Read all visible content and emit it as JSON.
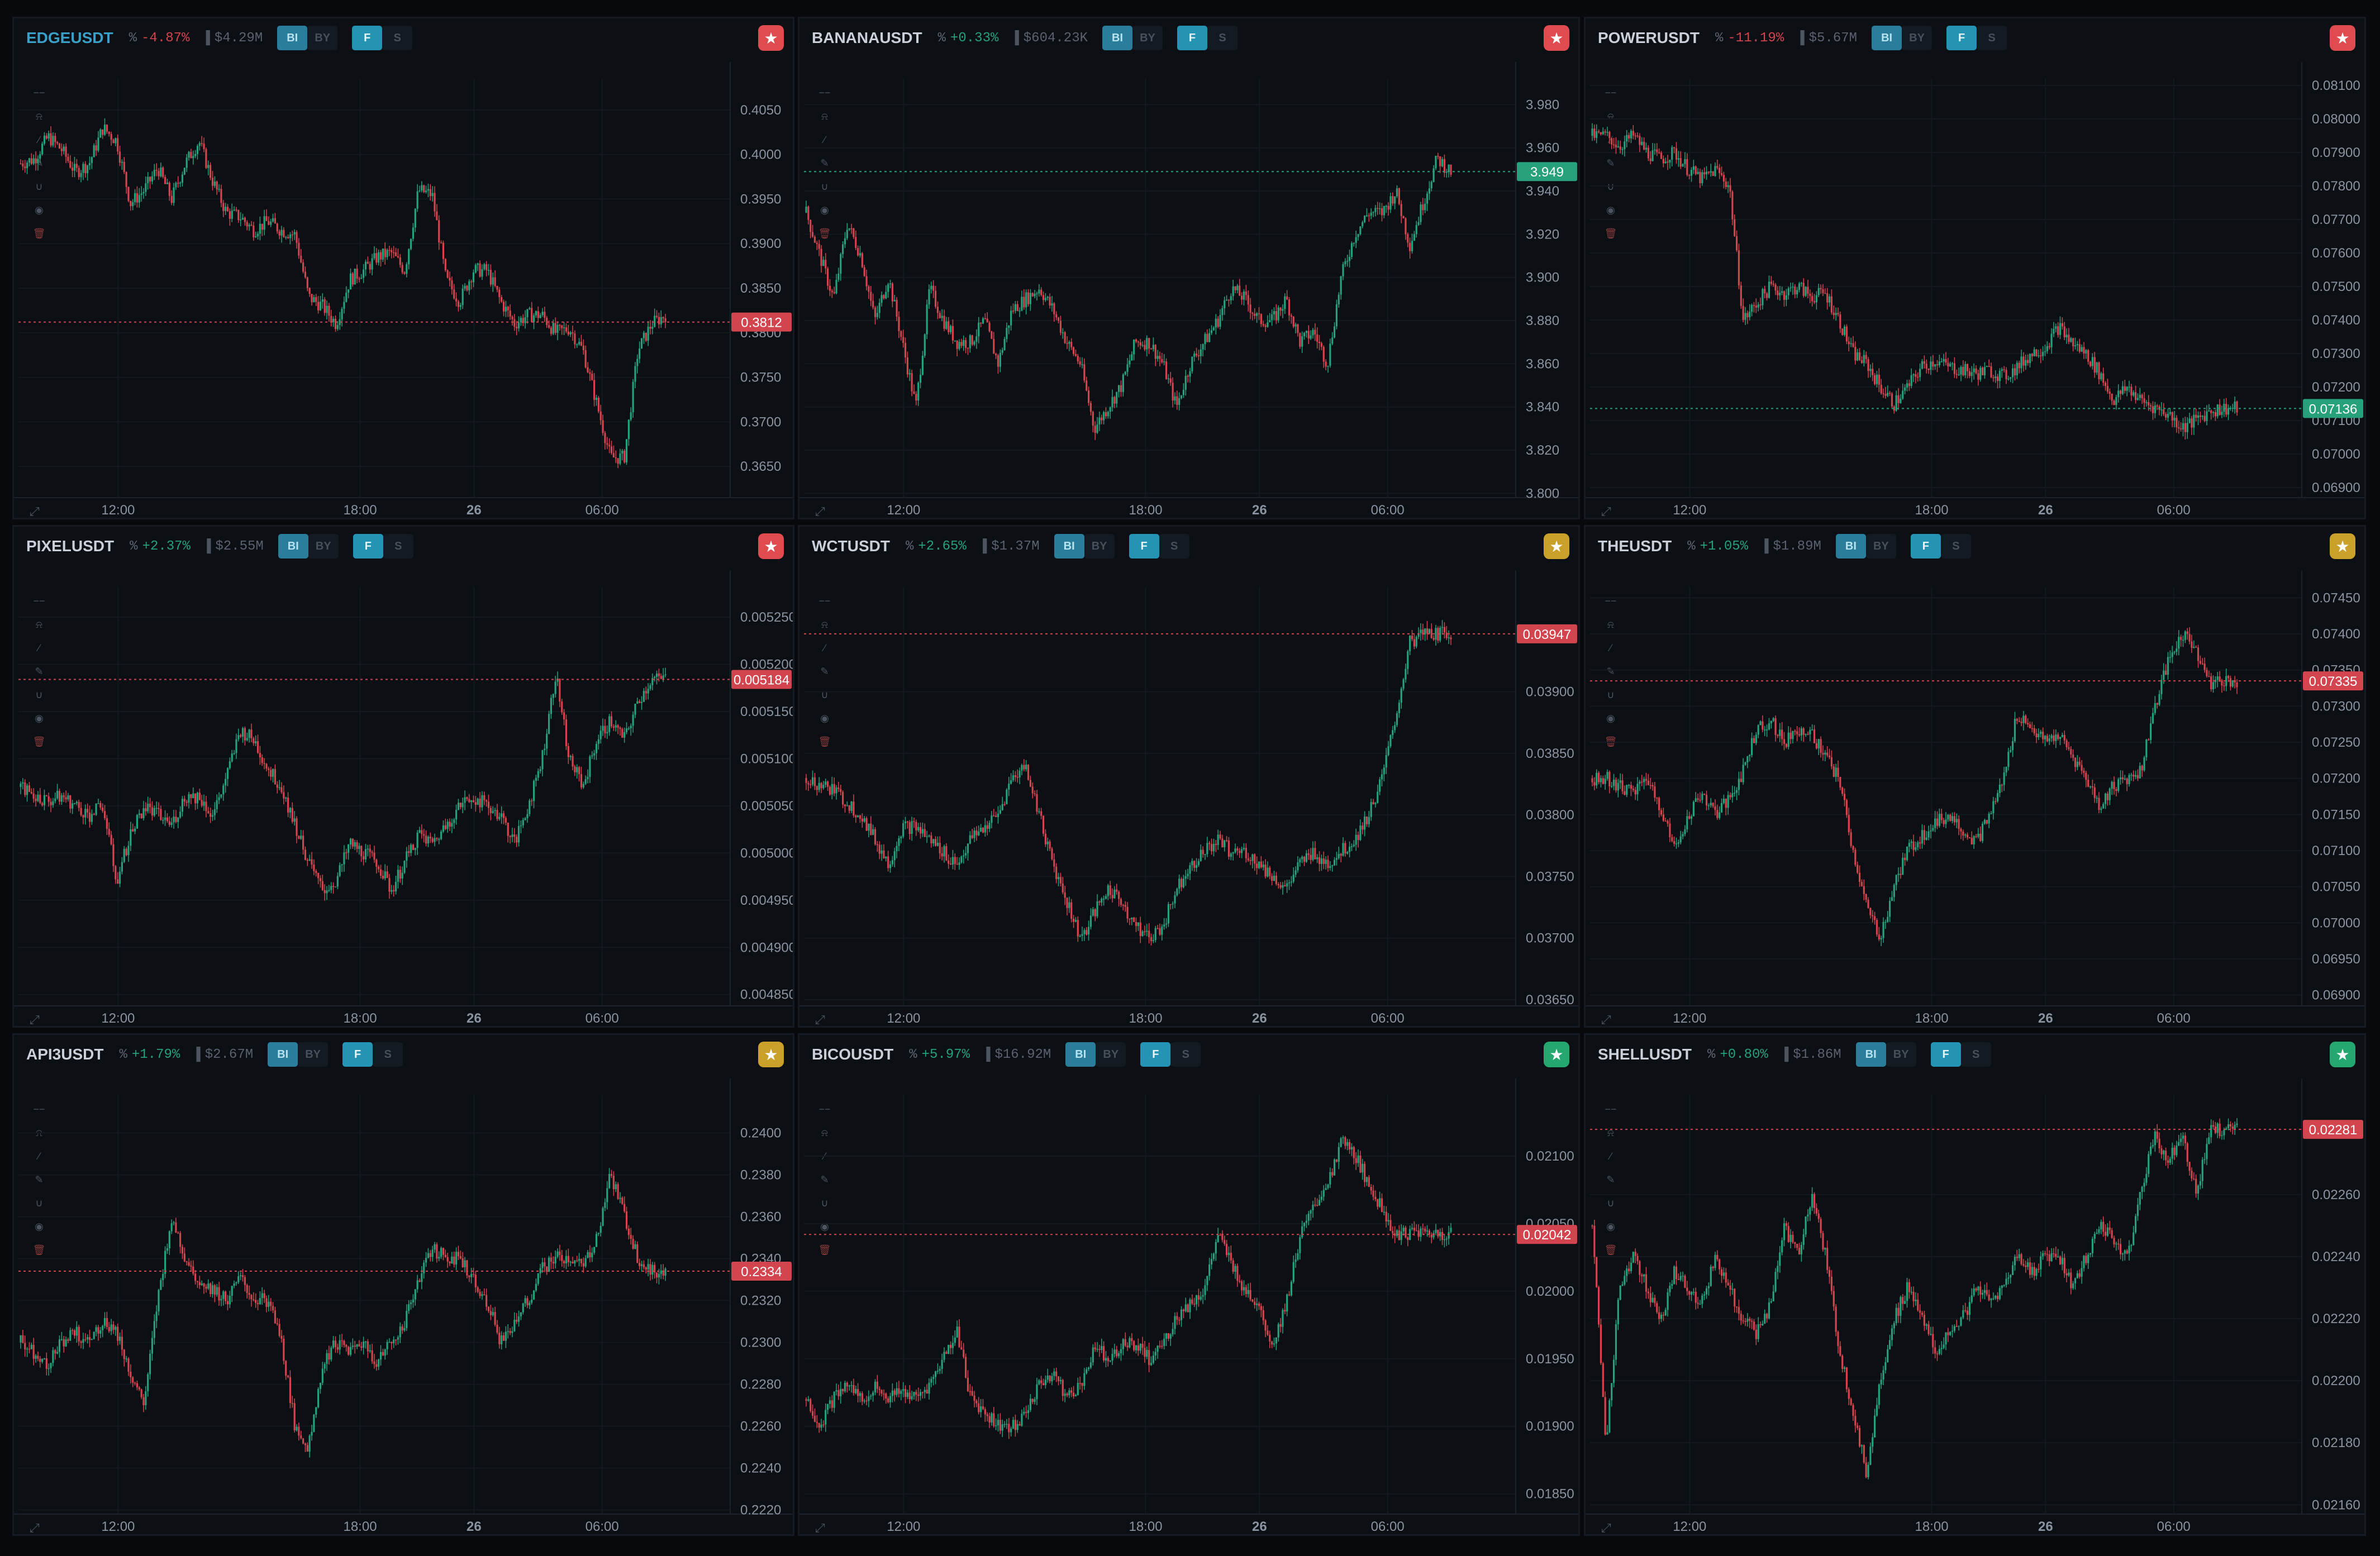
{
  "colors": {
    "up": "#26a17b",
    "down": "#d2454f",
    "bg": "#0c0f14",
    "grid": "#151a21",
    "axis_text": "#8a93a0",
    "star_red": "#e04b4f",
    "star_yellow": "#c9a12a",
    "star_green": "#25a870"
  },
  "toolbar": {
    "toggle_bi": "BI",
    "toggle_by": "BY",
    "toggle_f": "F",
    "toggle_s": "S"
  },
  "tools": [
    "−−",
    "⍾",
    "∕",
    "✎",
    "∪",
    "◉",
    "🗑"
  ],
  "panels": [
    {
      "symbol": "EDGEUSDT",
      "change": "-4.87%",
      "volume": "$4.29M",
      "change_dir": "down",
      "star": "red",
      "highlight": true,
      "bi_on": true,
      "price_label": "0.3812",
      "price_dir": "down",
      "yticks": [
        "0.4050",
        "0.4000",
        "0.3950",
        "0.3900",
        "0.3850",
        "0.3800",
        "0.3750",
        "0.3700",
        "0.3650"
      ],
      "ymin": 0.3615,
      "ymax": 0.4085,
      "price": 0.3812,
      "xticks": [
        "12:00",
        "18:00",
        "26",
        "06:00"
      ],
      "series": [
        0.399,
        0.3995,
        0.402,
        0.4005,
        0.398,
        0.399,
        0.403,
        0.4015,
        0.3945,
        0.396,
        0.3985,
        0.395,
        0.399,
        0.4015,
        0.397,
        0.3935,
        0.393,
        0.3915,
        0.3925,
        0.3915,
        0.391,
        0.384,
        0.383,
        0.381,
        0.386,
        0.387,
        0.3885,
        0.389,
        0.387,
        0.396,
        0.3955,
        0.386,
        0.3835,
        0.387,
        0.387,
        0.3835,
        0.381,
        0.382,
        0.382,
        0.38,
        0.3805,
        0.378,
        0.372,
        0.366,
        0.366,
        0.378,
        0.381,
        0.382
      ]
    },
    {
      "symbol": "BANANAUSDT",
      "change": "+0.33%",
      "volume": "$604.23K",
      "change_dir": "up",
      "star": "red",
      "highlight": false,
      "bi_on": true,
      "price_label": "3.949",
      "price_dir": "up",
      "yticks": [
        "3.980",
        "3.960",
        "3.940",
        "3.920",
        "3.900",
        "3.880",
        "3.860",
        "3.840",
        "3.820",
        "3.800"
      ],
      "ymin": 3.798,
      "ymax": 3.992,
      "price": 3.949,
      "xticks": [
        "12:00",
        "18:00",
        "26",
        "06:00"
      ],
      "series": [
        3.93,
        3.91,
        3.89,
        3.925,
        3.91,
        3.88,
        3.9,
        3.87,
        3.84,
        3.895,
        3.88,
        3.87,
        3.87,
        3.88,
        3.86,
        3.885,
        3.89,
        3.895,
        3.885,
        3.87,
        3.86,
        3.83,
        3.84,
        3.85,
        3.87,
        3.87,
        3.86,
        3.84,
        3.86,
        3.87,
        3.88,
        3.895,
        3.89,
        3.88,
        3.88,
        3.89,
        3.87,
        3.875,
        3.86,
        3.9,
        3.92,
        3.93,
        3.93,
        3.94,
        3.915,
        3.935,
        3.955,
        3.949
      ]
    },
    {
      "symbol": "POWERUSDT",
      "change": "-11.19%",
      "volume": "$5.67M",
      "change_dir": "down",
      "star": "red",
      "highlight": false,
      "bi_on": true,
      "price_label": "0.07136",
      "price_dir": "up",
      "yticks": [
        "0.08100",
        "0.08000",
        "0.07900",
        "0.07800",
        "0.07700",
        "0.07600",
        "0.07500",
        "0.07400",
        "0.07300",
        "0.07200",
        "0.07100",
        "0.07000",
        "0.06900"
      ],
      "ymin": 0.0687,
      "ymax": 0.0812,
      "price": 0.07136,
      "xticks": [
        "12:00",
        "18:00",
        "26",
        "06:00"
      ],
      "series": [
        0.0795,
        0.0795,
        0.0792,
        0.0795,
        0.079,
        0.0788,
        0.079,
        0.0785,
        0.0782,
        0.0785,
        0.078,
        0.074,
        0.0745,
        0.075,
        0.0748,
        0.075,
        0.0747,
        0.0748,
        0.074,
        0.073,
        0.0727,
        0.072,
        0.0715,
        0.072,
        0.0726,
        0.0728,
        0.0726,
        0.0725,
        0.0724,
        0.0725,
        0.0723,
        0.0726,
        0.073,
        0.0732,
        0.0738,
        0.0733,
        0.073,
        0.0724,
        0.0716,
        0.072,
        0.0716,
        0.0714,
        0.0712,
        0.0708,
        0.071,
        0.0713,
        0.07136,
        0.07136
      ]
    },
    {
      "symbol": "PIXELUSDT",
      "change": "+2.37%",
      "volume": "$2.55M",
      "change_dir": "up",
      "star": "red",
      "highlight": false,
      "bi_on": true,
      "price_label": "0.005184",
      "price_dir": "down",
      "yticks": [
        "0.005250",
        "0.005200",
        "0.005150",
        "0.005100",
        "0.005050",
        "0.005000",
        "0.004950",
        "0.004900",
        "0.004850"
      ],
      "ymin": 0.004838,
      "ymax": 0.005282,
      "price": 0.005184,
      "xticks": [
        "12:00",
        "18:00",
        "26",
        "06:00"
      ],
      "series": [
        0.00507,
        0.00506,
        0.005055,
        0.00506,
        0.00505,
        0.00504,
        0.00505,
        0.00497,
        0.00502,
        0.00505,
        0.00504,
        0.00503,
        0.00506,
        0.00506,
        0.00504,
        0.00508,
        0.00513,
        0.00512,
        0.00509,
        0.00507,
        0.00503,
        0.00499,
        0.00496,
        0.00497,
        0.00501,
        0.005,
        0.00499,
        0.00496,
        0.00499,
        0.00502,
        0.00501,
        0.00503,
        0.00505,
        0.00506,
        0.00505,
        0.00504,
        0.00501,
        0.00505,
        0.0051,
        0.00519,
        0.0051,
        0.00507,
        0.00512,
        0.00514,
        0.00512,
        0.00516,
        0.005184,
        0.005184
      ]
    },
    {
      "symbol": "WCTUSDT",
      "change": "+2.65%",
      "volume": "$1.37M",
      "change_dir": "up",
      "star": "yellow",
      "highlight": false,
      "bi_on": true,
      "price_label": "0.03947",
      "price_dir": "down",
      "yticks": [
        "0.03900",
        "0.03850",
        "0.03800",
        "0.03750",
        "0.03700",
        "0.03650"
      ],
      "ymin": 0.03645,
      "ymax": 0.03985,
      "price": 0.03947,
      "xticks": [
        "12:00",
        "18:00",
        "26",
        "06:00"
      ],
      "series": [
        0.0383,
        0.03825,
        0.0382,
        0.0381,
        0.038,
        0.0378,
        0.0376,
        0.0379,
        0.0379,
        0.0378,
        0.0377,
        0.0376,
        0.0378,
        0.0379,
        0.038,
        0.0383,
        0.0384,
        0.038,
        0.0376,
        0.0373,
        0.037,
        0.0372,
        0.0374,
        0.0373,
        0.0371,
        0.037,
        0.0371,
        0.0374,
        0.0376,
        0.0377,
        0.0378,
        0.0377,
        0.0377,
        0.0376,
        0.0375,
        0.0374,
        0.0376,
        0.0377,
        0.0376,
        0.0377,
        0.0378,
        0.038,
        0.0383,
        0.0388,
        0.0394,
        0.03947,
        0.03947,
        0.03947
      ]
    },
    {
      "symbol": "THEUSDT",
      "change": "+1.05%",
      "volume": "$1.89M",
      "change_dir": "up",
      "star": "yellow",
      "highlight": false,
      "bi_on": true,
      "price_label": "0.07335",
      "price_dir": "down",
      "yticks": [
        "0.07450",
        "0.07400",
        "0.07350",
        "0.07300",
        "0.07250",
        "0.07200",
        "0.07150",
        "0.07100",
        "0.07050",
        "0.07000",
        "0.06950",
        "0.06900"
      ],
      "ymin": 0.06885,
      "ymax": 0.07465,
      "price": 0.07335,
      "xticks": [
        "12:00",
        "18:00",
        "26",
        "06:00"
      ],
      "series": [
        0.072,
        0.072,
        0.0719,
        0.0718,
        0.072,
        0.0716,
        0.071,
        0.0715,
        0.0718,
        0.0715,
        0.0717,
        0.0721,
        0.0727,
        0.0728,
        0.0725,
        0.0727,
        0.0726,
        0.0723,
        0.072,
        0.071,
        0.0702,
        0.0698,
        0.0705,
        0.071,
        0.0712,
        0.0714,
        0.0715,
        0.0713,
        0.0711,
        0.0715,
        0.072,
        0.0729,
        0.0727,
        0.0725,
        0.0726,
        0.0723,
        0.072,
        0.0716,
        0.0719,
        0.072,
        0.0721,
        0.073,
        0.0736,
        0.074,
        0.0738,
        0.0733,
        0.07335,
        0.07335
      ]
    },
    {
      "symbol": "API3USDT",
      "change": "+1.79%",
      "volume": "$2.67M",
      "change_dir": "up",
      "star": "yellow",
      "highlight": false,
      "bi_on": true,
      "price_label": "0.2334",
      "price_dir": "down",
      "yticks": [
        "0.2400",
        "0.2380",
        "0.2360",
        "0.2340",
        "0.2320",
        "0.2300",
        "0.2280",
        "0.2260",
        "0.2240",
        "0.2220"
      ],
      "ymin": 0.2218,
      "ymax": 0.2418,
      "price": 0.2334,
      "xticks": [
        "12:00",
        "18:00",
        "26",
        "06:00"
      ],
      "series": [
        0.23,
        0.2295,
        0.229,
        0.23,
        0.2305,
        0.23,
        0.231,
        0.2305,
        0.2285,
        0.227,
        0.232,
        0.236,
        0.234,
        0.233,
        0.2325,
        0.232,
        0.233,
        0.232,
        0.232,
        0.23,
        0.226,
        0.225,
        0.229,
        0.23,
        0.2295,
        0.23,
        0.229,
        0.23,
        0.231,
        0.233,
        0.2345,
        0.234,
        0.234,
        0.233,
        0.232,
        0.23,
        0.231,
        0.232,
        0.2335,
        0.234,
        0.234,
        0.2335,
        0.235,
        0.238,
        0.236,
        0.234,
        0.2334,
        0.2334
      ]
    },
    {
      "symbol": "BICOUSDT",
      "change": "+5.97%",
      "volume": "$16.92M",
      "change_dir": "up",
      "star": "green",
      "highlight": false,
      "bi_on": true,
      "price_label": "0.02042",
      "price_dir": "down",
      "yticks": [
        "0.02100",
        "0.02050",
        "0.02000",
        "0.01950",
        "0.01900",
        "0.01850"
      ],
      "ymin": 0.01835,
      "ymax": 0.02145,
      "price": 0.02042,
      "xticks": [
        "12:00",
        "18:00",
        "26",
        "06:00"
      ],
      "series": [
        0.0192,
        0.019,
        0.0192,
        0.0193,
        0.0192,
        0.0193,
        0.0192,
        0.01925,
        0.0192,
        0.0193,
        0.0195,
        0.0197,
        0.0192,
        0.0191,
        0.019,
        0.019,
        0.0191,
        0.0193,
        0.0194,
        0.0192,
        0.0193,
        0.0196,
        0.0195,
        0.0196,
        0.0196,
        0.0195,
        0.0196,
        0.0198,
        0.0199,
        0.02,
        0.0204,
        0.0202,
        0.02,
        0.0199,
        0.0196,
        0.0199,
        0.0204,
        0.0206,
        0.0208,
        0.0211,
        0.021,
        0.0208,
        0.0206,
        0.02042,
        0.02042,
        0.02042,
        0.02042,
        0.02042
      ]
    },
    {
      "symbol": "SHELLUSDT",
      "change": "+0.80%",
      "volume": "$1.86M",
      "change_dir": "up",
      "star": "green",
      "highlight": false,
      "bi_on": true,
      "price_label": "0.02281",
      "price_dir": "down",
      "yticks": [
        "0.02260",
        "0.02240",
        "0.02220",
        "0.02200",
        "0.02180",
        "0.02160"
      ],
      "ymin": 0.02157,
      "ymax": 0.02292,
      "price": 0.02281,
      "xticks": [
        "12:00",
        "18:00",
        "26",
        "06:00"
      ],
      "series": [
        0.0225,
        0.0218,
        0.0223,
        0.0224,
        0.0223,
        0.0222,
        0.02235,
        0.0223,
        0.02225,
        0.0224,
        0.0223,
        0.0222,
        0.02215,
        0.02225,
        0.0225,
        0.0224,
        0.0226,
        0.0224,
        0.0221,
        0.0219,
        0.0217,
        0.022,
        0.0222,
        0.0223,
        0.0222,
        0.0221,
        0.02215,
        0.0222,
        0.0223,
        0.02225,
        0.0223,
        0.0224,
        0.02235,
        0.0224,
        0.0224,
        0.0223,
        0.0224,
        0.0225,
        0.02245,
        0.0224,
        0.0226,
        0.0228,
        0.0227,
        0.0228,
        0.0226,
        0.0228,
        0.02281,
        0.02281
      ]
    }
  ]
}
